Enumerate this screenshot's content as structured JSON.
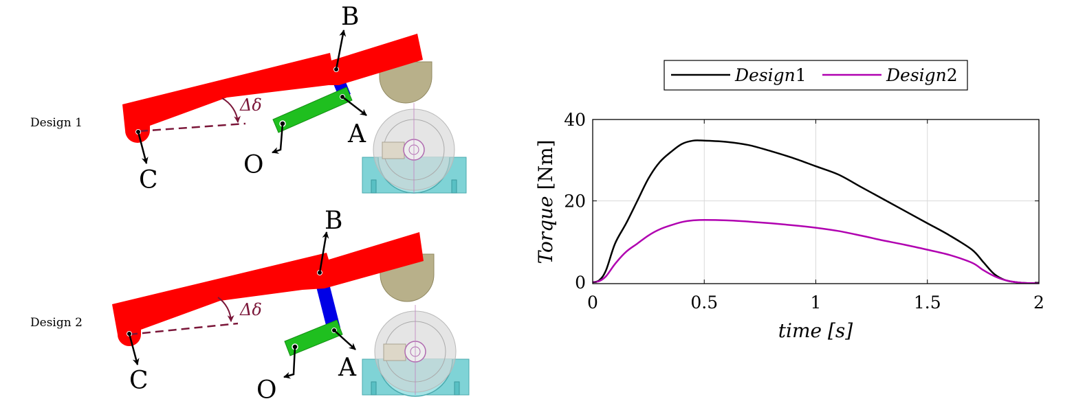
{
  "diagram": {
    "designs": [
      {
        "label": "Design 1",
        "points": {
          "b": "B",
          "a": "A",
          "c": "C",
          "o": "O"
        },
        "angle": "Δδ"
      },
      {
        "label": "Design 2",
        "points": {
          "b": "B",
          "a": "A",
          "c": "C",
          "o": "O"
        },
        "angle": "Δδ"
      }
    ],
    "colors": {
      "lever": "#ff0000",
      "link": "#0000e6",
      "crank": "#1fbf1f",
      "roller": "#b8b08a",
      "base": "#7fd3d6",
      "angle": "#7a1538"
    }
  },
  "chart_data": {
    "type": "line",
    "title": "",
    "xlabel": "time [s]",
    "xlabel_parts": {
      "var": "time",
      "unit": "[s]"
    },
    "ylabel": "Torque [Nm]",
    "ylabel_parts": {
      "var": "Torque",
      "unit": "[Nm]"
    },
    "xlim": [
      0,
      2
    ],
    "ylim": [
      -1,
      40
    ],
    "xticks": [
      0,
      0.5,
      1,
      1.5,
      2
    ],
    "xtick_labels": [
      "0",
      "0.5",
      "1",
      "1.5",
      "2"
    ],
    "yticks": [
      0,
      20,
      40
    ],
    "ytick_labels": [
      "0",
      "20",
      "40"
    ],
    "grid": true,
    "legend": "top",
    "series": [
      {
        "name": "Design1",
        "name_parts": {
          "word": "Design",
          "num": "1"
        },
        "color": "#000000",
        "x": [
          0,
          0.03,
          0.06,
          0.1,
          0.15,
          0.2,
          0.25,
          0.3,
          0.35,
          0.4,
          0.45,
          0.5,
          0.6,
          0.7,
          0.8,
          0.9,
          1.0,
          1.1,
          1.2,
          1.3,
          1.4,
          1.5,
          1.6,
          1.7,
          1.75,
          1.8,
          1.85,
          1.9,
          1.95,
          2.0
        ],
        "y": [
          0,
          0.5,
          3,
          9.5,
          14.5,
          20,
          25.5,
          29.5,
          32,
          34,
          34.8,
          34.8,
          34.5,
          33.7,
          32.2,
          30.5,
          28.5,
          26.5,
          23.5,
          20.5,
          17.5,
          14.5,
          11.5,
          8,
          5,
          2,
          0.5,
          0,
          -0.2,
          -0.2
        ]
      },
      {
        "name": "Design2",
        "name_parts": {
          "word": "Design",
          "num": "2"
        },
        "color": "#b000b0",
        "x": [
          0,
          0.03,
          0.06,
          0.1,
          0.15,
          0.2,
          0.25,
          0.3,
          0.35,
          0.4,
          0.45,
          0.5,
          0.6,
          0.7,
          0.8,
          0.9,
          1.0,
          1.1,
          1.2,
          1.3,
          1.4,
          1.5,
          1.6,
          1.7,
          1.75,
          1.8,
          1.85,
          1.9,
          1.95,
          2.0
        ],
        "y": [
          0,
          0.3,
          1.5,
          4.5,
          7.5,
          9.5,
          11.5,
          13,
          14,
          14.8,
          15.2,
          15.3,
          15.2,
          14.9,
          14.5,
          14,
          13.4,
          12.6,
          11.5,
          10.3,
          9.2,
          8,
          6.7,
          4.8,
          3,
          1.5,
          0.5,
          0,
          -0.2,
          -0.2
        ]
      }
    ]
  }
}
